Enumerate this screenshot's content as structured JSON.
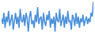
{
  "chart_data": {
    "type": "line",
    "color": "#4a90d9",
    "tick_labels": false,
    "grid": false,
    "ylim": [
      15,
      100
    ],
    "values": [
      55,
      40,
      70,
      30,
      60,
      45,
      75,
      35,
      50,
      65,
      25,
      55,
      70,
      40,
      60,
      30,
      80,
      50,
      45,
      65,
      35,
      70,
      55,
      20,
      60,
      75,
      40,
      50,
      30,
      65,
      45,
      85,
      40,
      55,
      60,
      25,
      70,
      45,
      35,
      65,
      50,
      75,
      30,
      55,
      40,
      60,
      20,
      70,
      50,
      45,
      80,
      35,
      55,
      65,
      30,
      60,
      40,
      75,
      45,
      50,
      25,
      65,
      55,
      35,
      70,
      40,
      60,
      30,
      55,
      45,
      65,
      35,
      50,
      60,
      40,
      55,
      45,
      70,
      60,
      100
    ]
  }
}
